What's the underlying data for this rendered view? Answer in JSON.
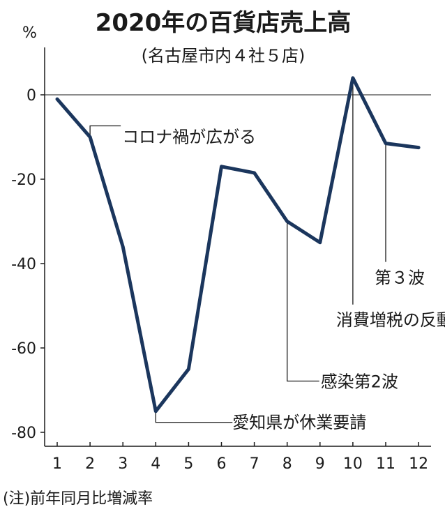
{
  "title": "2020年の百貨店売上高",
  "subtitle": "(名古屋市内４社５店)",
  "y_unit": "%",
  "note": "(注)前年同月比増減率",
  "colors": {
    "line": "#1b365d",
    "axis": "#1a1a1a",
    "leader": "#1a1a1a"
  },
  "chart_data": {
    "type": "line",
    "categories": [
      "1",
      "2",
      "3",
      "4",
      "5",
      "6",
      "7",
      "8",
      "9",
      "10",
      "11",
      "12"
    ],
    "series": [
      {
        "values": [
          -1,
          -10,
          -36,
          -75,
          -65,
          -17,
          -18.5,
          -30,
          -35,
          4,
          -11.5,
          -12.5
        ]
      }
    ],
    "ylim": [
      -84,
      12
    ],
    "yticks": [
      0,
      -20,
      -40,
      -60,
      -80
    ],
    "annotations": [
      {
        "index": 1,
        "text": "コロナ禍が広がる"
      },
      {
        "index": 3,
        "text": "愛知県が休業要請"
      },
      {
        "index": 7,
        "text": "感染第2波"
      },
      {
        "index": 9,
        "text": "消費増税の反動"
      },
      {
        "index": 10,
        "text": "第３波"
      }
    ]
  }
}
